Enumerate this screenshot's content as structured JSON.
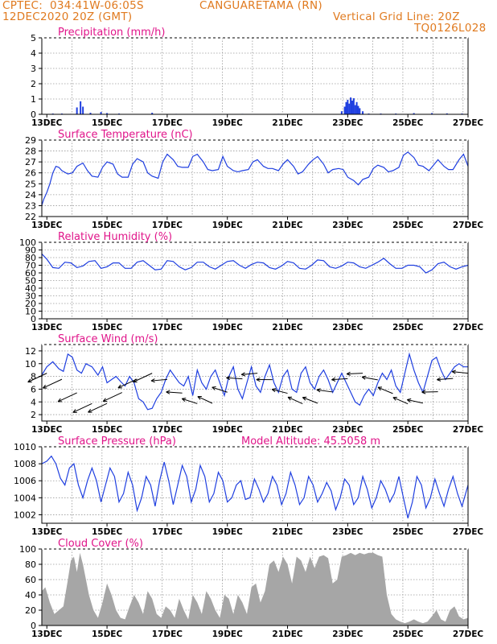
{
  "header": {
    "source": "CPTEC:",
    "coords": "034:41W-06:05S",
    "station": "CANGUARETAMA (RN)",
    "datetime": "12DEC2020 20Z (GMT)",
    "grid_note": "Vertical Grid Line: 20Z",
    "run_id": "TQ0126L028"
  },
  "colors": {
    "header": "#e07a1f",
    "panel_title": "#e0158a",
    "series": "#1f3fe0",
    "cloud": "#a6a6a6",
    "grid": "#9a9a9a"
  },
  "x_axis": {
    "tick_labels": [
      "13DEC",
      "15DEC",
      "17DEC",
      "19DEC",
      "21DEC",
      "23DEC",
      "25DEC",
      "27DEC"
    ],
    "start_day": 12.833,
    "end_day": 27.0
  },
  "chart_data": [
    {
      "id": "precip",
      "type": "bar",
      "title": "Precipitation (mm/h)",
      "ylim": [
        0,
        5
      ],
      "yticks": [
        0,
        1,
        2,
        3,
        4,
        5
      ],
      "grid": true,
      "x_days": [
        13.2,
        13.5,
        13.8,
        14.0,
        14.12,
        14.2,
        14.45,
        14.8,
        15.0,
        15.4,
        16.5,
        17.3,
        19.5,
        20.7,
        22.8,
        22.9,
        22.95,
        23.0,
        23.05,
        23.1,
        23.15,
        23.2,
        23.25,
        23.3,
        23.35,
        23.4,
        23.5,
        23.7,
        24.1,
        24.6,
        25.2,
        25.8,
        26.3,
        26.8
      ],
      "values": [
        0.05,
        0.05,
        0.03,
        0.45,
        0.85,
        0.5,
        0.1,
        0.15,
        0.08,
        0.05,
        0.1,
        0.03,
        0.03,
        0.03,
        0.2,
        0.5,
        0.8,
        0.95,
        0.7,
        1.1,
        0.9,
        1.05,
        0.6,
        0.8,
        0.55,
        0.4,
        0.2,
        0.05,
        0.05,
        0.05,
        0.08,
        0.08,
        0.06,
        0.05
      ]
    },
    {
      "id": "temp",
      "type": "line",
      "title": "Surface Temperature (nC)",
      "ylim": [
        22,
        29
      ],
      "yticks": [
        22,
        23,
        24,
        25,
        26,
        27,
        28,
        29
      ],
      "grid": true,
      "x": [
        12.83,
        12.9,
        13.0,
        13.1,
        13.2,
        13.3,
        13.4,
        13.5,
        13.7,
        13.85,
        14.0,
        14.2,
        14.35,
        14.5,
        14.7,
        14.85,
        15.0,
        15.2,
        15.35,
        15.5,
        15.7,
        15.85,
        16.0,
        16.2,
        16.35,
        16.5,
        16.7,
        16.85,
        17.0,
        17.2,
        17.35,
        17.5,
        17.7,
        17.85,
        18.0,
        18.2,
        18.35,
        18.5,
        18.7,
        18.85,
        19.0,
        19.2,
        19.35,
        19.5,
        19.7,
        19.85,
        20.0,
        20.2,
        20.35,
        20.5,
        20.7,
        20.85,
        21.0,
        21.2,
        21.35,
        21.5,
        21.7,
        21.85,
        22.0,
        22.2,
        22.35,
        22.5,
        22.7,
        22.85,
        23.0,
        23.2,
        23.35,
        23.5,
        23.7,
        23.85,
        24.0,
        24.2,
        24.35,
        24.5,
        24.7,
        24.85,
        25.0,
        25.2,
        25.35,
        25.5,
        25.7,
        25.85,
        26.0,
        26.2,
        26.35,
        26.5,
        26.7,
        26.85,
        27.0
      ],
      "values": [
        23.0,
        23.6,
        24.2,
        25.0,
        26.0,
        26.6,
        26.5,
        26.2,
        25.9,
        26.0,
        26.6,
        26.9,
        26.2,
        25.7,
        25.6,
        26.5,
        27.0,
        26.8,
        25.9,
        25.6,
        25.6,
        26.8,
        27.3,
        27.0,
        26.0,
        25.7,
        25.5,
        27.0,
        27.7,
        27.2,
        26.6,
        26.5,
        26.5,
        27.5,
        27.7,
        27.0,
        26.3,
        26.2,
        26.3,
        27.5,
        26.6,
        26.2,
        26.1,
        26.2,
        26.3,
        27.0,
        27.2,
        26.6,
        26.4,
        26.4,
        26.2,
        26.8,
        27.2,
        26.6,
        25.9,
        26.1,
        26.8,
        27.2,
        27.5,
        26.8,
        26.0,
        26.3,
        26.4,
        26.3,
        25.6,
        25.3,
        24.9,
        25.4,
        25.6,
        26.4,
        26.7,
        26.5,
        26.1,
        26.2,
        26.5,
        27.6,
        27.9,
        27.4,
        26.7,
        26.6,
        26.2,
        26.7,
        27.2,
        26.6,
        26.3,
        26.3,
        27.2,
        27.7,
        26.6
      ]
    },
    {
      "id": "rh",
      "type": "line",
      "title": "Relative Humidity (%)",
      "ylim": [
        0,
        100
      ],
      "yticks": [
        0,
        10,
        20,
        30,
        40,
        50,
        60,
        70,
        80,
        90,
        100
      ],
      "grid": true,
      "x": [
        12.83,
        13.0,
        13.2,
        13.4,
        13.6,
        13.8,
        14.0,
        14.2,
        14.4,
        14.6,
        14.8,
        15.0,
        15.2,
        15.4,
        15.6,
        15.8,
        16.0,
        16.2,
        16.4,
        16.6,
        16.8,
        17.0,
        17.2,
        17.4,
        17.6,
        17.8,
        18.0,
        18.2,
        18.4,
        18.6,
        18.8,
        19.0,
        19.2,
        19.4,
        19.6,
        19.8,
        20.0,
        20.2,
        20.4,
        20.6,
        20.8,
        21.0,
        21.2,
        21.4,
        21.6,
        21.8,
        22.0,
        22.2,
        22.4,
        22.6,
        22.8,
        23.0,
        23.2,
        23.4,
        23.6,
        23.8,
        24.0,
        24.2,
        24.4,
        24.6,
        24.8,
        25.0,
        25.2,
        25.4,
        25.6,
        25.8,
        26.0,
        26.2,
        26.4,
        26.6,
        26.8,
        27.0
      ],
      "values": [
        85,
        78,
        67,
        66,
        74,
        73,
        67,
        69,
        75,
        76,
        66,
        68,
        73,
        73,
        66,
        66,
        74,
        76,
        70,
        64,
        65,
        76,
        75,
        68,
        64,
        67,
        74,
        74,
        68,
        65,
        70,
        75,
        76,
        70,
        66,
        71,
        74,
        73,
        67,
        65,
        69,
        75,
        73,
        66,
        65,
        70,
        77,
        76,
        68,
        66,
        69,
        74,
        73,
        68,
        66,
        70,
        74,
        79,
        72,
        66,
        66,
        70,
        70,
        68,
        60,
        64,
        72,
        74,
        68,
        65,
        68,
        70
      ]
    },
    {
      "id": "wind",
      "type": "line",
      "title": "Surface Wind (m/s)",
      "ylim": [
        1,
        13
      ],
      "yticks": [
        2,
        4,
        6,
        8,
        10,
        12
      ],
      "grid": true,
      "x": [
        12.83,
        13.0,
        13.2,
        13.4,
        13.55,
        13.7,
        13.85,
        14.0,
        14.15,
        14.3,
        14.5,
        14.7,
        14.85,
        15.0,
        15.15,
        15.3,
        15.45,
        15.6,
        15.75,
        15.9,
        16.05,
        16.2,
        16.35,
        16.5,
        16.65,
        16.8,
        16.95,
        17.1,
        17.25,
        17.4,
        17.55,
        17.7,
        17.85,
        18.0,
        18.15,
        18.3,
        18.45,
        18.6,
        18.75,
        18.9,
        19.05,
        19.2,
        19.35,
        19.5,
        19.65,
        19.8,
        19.95,
        20.1,
        20.25,
        20.4,
        20.55,
        20.7,
        20.85,
        21.0,
        21.15,
        21.3,
        21.45,
        21.6,
        21.75,
        21.9,
        22.05,
        22.2,
        22.35,
        22.5,
        22.65,
        22.8,
        22.95,
        23.1,
        23.25,
        23.4,
        23.55,
        23.7,
        23.85,
        24.0,
        24.15,
        24.3,
        24.45,
        24.6,
        24.75,
        24.9,
        25.05,
        25.2,
        25.35,
        25.5,
        25.65,
        25.8,
        25.95,
        26.1,
        26.25,
        26.4,
        26.55,
        26.7,
        26.85,
        27.0
      ],
      "values": [
        8.2,
        9.5,
        10.3,
        9.2,
        8.8,
        11.5,
        11.0,
        9.0,
        8.5,
        10.0,
        9.5,
        8.2,
        9.5,
        7.0,
        7.5,
        8.0,
        7.2,
        6.5,
        8.0,
        7.0,
        4.5,
        4.0,
        2.8,
        3.0,
        4.5,
        5.5,
        7.5,
        9.0,
        8.0,
        7.0,
        6.5,
        8.0,
        5.0,
        9.0,
        7.0,
        6.0,
        8.0,
        9.0,
        7.0,
        5.0,
        8.0,
        9.5,
        6.0,
        4.5,
        7.0,
        9.5,
        6.5,
        5.5,
        8.0,
        9.8,
        7.0,
        5.5,
        8.0,
        9.0,
        6.0,
        5.5,
        8.5,
        9.5,
        7.0,
        6.0,
        8.0,
        9.0,
        7.5,
        5.5,
        7.0,
        8.5,
        7.0,
        5.5,
        4.0,
        3.5,
        5.0,
        6.0,
        5.0,
        7.0,
        8.5,
        7.5,
        9.0,
        6.5,
        5.5,
        8.5,
        11.5,
        9.0,
        7.0,
        5.5,
        8.0,
        10.5,
        11.0,
        9.0,
        7.5,
        8.5,
        9.5,
        10.0,
        9.5,
        9.5
      ]
    },
    {
      "id": "pressure",
      "type": "line",
      "title": "Surface Pressure (hPa)",
      "annotation": "Model Altitude: 45.5058 m",
      "ylim": [
        1001,
        1010
      ],
      "yticks": [
        1002,
        1004,
        1006,
        1008,
        1010
      ],
      "grid": true,
      "x": [
        12.83,
        13.0,
        13.15,
        13.3,
        13.45,
        13.6,
        13.75,
        13.9,
        14.05,
        14.2,
        14.35,
        14.5,
        14.65,
        14.8,
        14.95,
        15.1,
        15.25,
        15.4,
        15.55,
        15.7,
        15.85,
        16.0,
        16.15,
        16.3,
        16.45,
        16.6,
        16.75,
        16.9,
        17.05,
        17.2,
        17.35,
        17.5,
        17.65,
        17.8,
        17.95,
        18.1,
        18.25,
        18.4,
        18.55,
        18.7,
        18.85,
        19.0,
        19.15,
        19.3,
        19.45,
        19.6,
        19.75,
        19.9,
        20.05,
        20.2,
        20.35,
        20.5,
        20.65,
        20.8,
        20.95,
        21.1,
        21.25,
        21.4,
        21.55,
        21.7,
        21.85,
        22.0,
        22.15,
        22.3,
        22.45,
        22.6,
        22.75,
        22.9,
        23.05,
        23.2,
        23.35,
        23.5,
        23.65,
        23.8,
        23.95,
        24.1,
        24.25,
        24.4,
        24.55,
        24.7,
        24.85,
        25.0,
        25.15,
        25.3,
        25.45,
        25.6,
        25.75,
        25.9,
        26.05,
        26.2,
        26.35,
        26.5,
        26.65,
        26.8,
        27.0
      ],
      "values": [
        1008.0,
        1008.3,
        1008.9,
        1008.0,
        1006.3,
        1005.5,
        1007.5,
        1008.0,
        1005.5,
        1004.0,
        1006.0,
        1007.5,
        1006.0,
        1003.5,
        1005.5,
        1007.5,
        1006.5,
        1003.5,
        1004.5,
        1007.0,
        1005.5,
        1002.5,
        1004.0,
        1006.5,
        1005.5,
        1003.0,
        1006.0,
        1008.2,
        1006.0,
        1003.2,
        1005.5,
        1007.8,
        1006.5,
        1003.5,
        1005.0,
        1007.8,
        1006.5,
        1003.5,
        1004.5,
        1007.0,
        1006.0,
        1003.5,
        1004.0,
        1005.5,
        1006.0,
        1003.8,
        1004.0,
        1006.2,
        1005.0,
        1003.5,
        1004.5,
        1006.5,
        1005.5,
        1003.2,
        1004.5,
        1007.0,
        1005.5,
        1003.2,
        1004.0,
        1006.5,
        1005.5,
        1003.5,
        1004.5,
        1005.8,
        1004.8,
        1002.6,
        1004.0,
        1006.2,
        1005.5,
        1003.2,
        1004.0,
        1006.5,
        1005.0,
        1002.8,
        1004.0,
        1006.0,
        1005.0,
        1003.5,
        1004.5,
        1006.5,
        1004.0,
        1001.6,
        1003.5,
        1006.5,
        1005.5,
        1002.8,
        1004.0,
        1006.2,
        1004.5,
        1003.0,
        1005.0,
        1006.5,
        1004.5,
        1003.0,
        1005.5
      ]
    },
    {
      "id": "cloud",
      "type": "area",
      "title": "Cloud Cover (%)",
      "ylim": [
        0,
        100
      ],
      "yticks": [
        0,
        20,
        40,
        60,
        80,
        100
      ],
      "grid": true,
      "x": [
        12.83,
        12.95,
        13.1,
        13.25,
        13.4,
        13.55,
        13.7,
        13.8,
        13.9,
        14.0,
        14.1,
        14.2,
        14.3,
        14.4,
        14.55,
        14.7,
        14.85,
        15.0,
        15.15,
        15.3,
        15.45,
        15.6,
        15.75,
        15.9,
        16.05,
        16.2,
        16.35,
        16.5,
        16.65,
        16.8,
        16.95,
        17.1,
        17.25,
        17.4,
        17.55,
        17.7,
        17.85,
        18.0,
        18.15,
        18.3,
        18.45,
        18.6,
        18.75,
        18.9,
        19.05,
        19.2,
        19.35,
        19.5,
        19.65,
        19.8,
        19.95,
        20.1,
        20.25,
        20.4,
        20.55,
        20.7,
        20.85,
        21.0,
        21.15,
        21.3,
        21.45,
        21.6,
        21.75,
        21.9,
        22.05,
        22.2,
        22.35,
        22.5,
        22.65,
        22.8,
        22.95,
        23.1,
        23.25,
        23.4,
        23.55,
        23.7,
        23.85,
        24.0,
        24.15,
        24.3,
        24.45,
        24.6,
        24.75,
        24.9,
        25.05,
        25.2,
        25.35,
        25.5,
        25.65,
        25.8,
        25.95,
        26.1,
        26.25,
        26.4,
        26.55,
        26.7,
        26.85,
        27.0
      ],
      "values": [
        45,
        50,
        30,
        15,
        20,
        25,
        60,
        85,
        90,
        70,
        95,
        80,
        60,
        40,
        20,
        10,
        30,
        55,
        40,
        20,
        10,
        8,
        25,
        40,
        30,
        15,
        45,
        35,
        15,
        10,
        25,
        20,
        10,
        35,
        20,
        8,
        40,
        30,
        15,
        45,
        35,
        20,
        10,
        40,
        35,
        15,
        40,
        30,
        15,
        50,
        55,
        30,
        45,
        80,
        85,
        70,
        90,
        80,
        55,
        90,
        85,
        70,
        90,
        75,
        90,
        92,
        88,
        55,
        60,
        90,
        92,
        95,
        92,
        95,
        93,
        95,
        95,
        92,
        90,
        40,
        15,
        8,
        5,
        3,
        5,
        8,
        5,
        3,
        5,
        12,
        20,
        8,
        5,
        20,
        25,
        12,
        8,
        10
      ]
    }
  ]
}
